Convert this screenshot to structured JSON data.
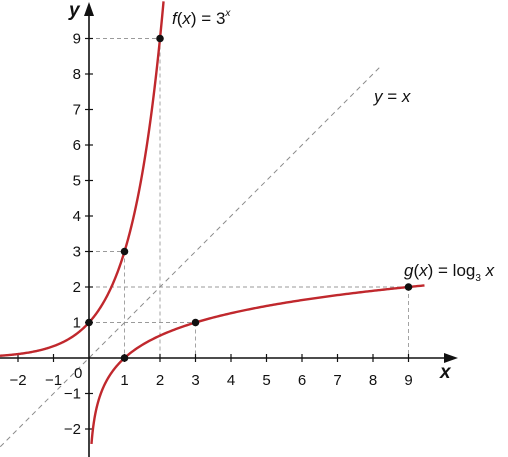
{
  "chart_data": {
    "type": "line",
    "xlabel": "x",
    "ylabel": "y",
    "xlim": [
      -2.5,
      10.0
    ],
    "ylim": [
      -2.9,
      9.7
    ],
    "origin_label": "0",
    "x_ticks": [
      -2,
      -1,
      1,
      2,
      3,
      4,
      5,
      6,
      7,
      8,
      9
    ],
    "x_tick_labels": [
      "−2",
      "−1",
      "1",
      "2",
      "3",
      "4",
      "5",
      "6",
      "7",
      "8",
      "9"
    ],
    "y_ticks": [
      -2,
      -1,
      1,
      2,
      3,
      4,
      5,
      6,
      7,
      8,
      9
    ],
    "y_tick_labels": [
      "−2",
      "−1",
      "1",
      "2",
      "3",
      "4",
      "5",
      "6",
      "7",
      "8",
      "9"
    ],
    "grid": false,
    "series": [
      {
        "name": "f(x) = 3^x",
        "label_parts": {
          "f": "f",
          "open": "(",
          "x": "x",
          "close": ") = ",
          "base": "3",
          "exp": "x"
        },
        "color": "#c0282d",
        "style": "solid",
        "marked_points": [
          [
            0,
            1
          ],
          [
            1,
            3
          ],
          [
            2,
            9
          ]
        ]
      },
      {
        "name": "g(x) = log_3 x",
        "label_parts": {
          "g": "g",
          "open": "(",
          "x": "x",
          "close": ") = log",
          "sub": "3",
          "arg": " x"
        },
        "color": "#c0282d",
        "style": "solid",
        "marked_points": [
          [
            1,
            0
          ],
          [
            3,
            1
          ],
          [
            9,
            2
          ]
        ]
      },
      {
        "name": "y = x",
        "label_parts": {
          "y": "y",
          "eq": " = ",
          "x": "x"
        },
        "color": "#8c8c8c",
        "style": "dashed"
      }
    ],
    "guide_lines": [
      {
        "from": [
          0,
          9
        ],
        "to": [
          2,
          9
        ]
      },
      {
        "from": [
          2,
          9
        ],
        "to": [
          2,
          0
        ]
      },
      {
        "from": [
          0,
          3
        ],
        "to": [
          1,
          3
        ]
      },
      {
        "from": [
          1,
          3
        ],
        "to": [
          1,
          0
        ]
      },
      {
        "from": [
          0,
          1
        ],
        "to": [
          3,
          1
        ]
      },
      {
        "from": [
          3,
          1
        ],
        "to": [
          3,
          0
        ]
      },
      {
        "from": [
          0,
          2
        ],
        "to": [
          9,
          2
        ]
      },
      {
        "from": [
          9,
          2
        ],
        "to": [
          9,
          0
        ]
      }
    ]
  }
}
